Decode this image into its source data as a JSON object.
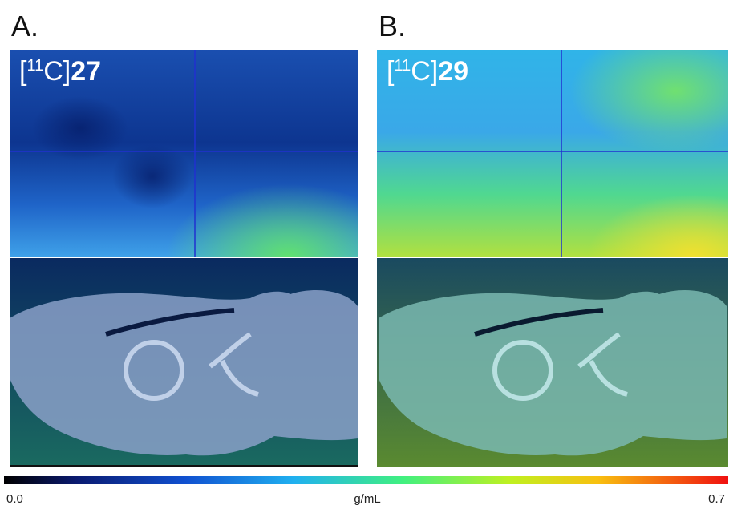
{
  "panels": [
    {
      "letter": "A.",
      "tracer": {
        "open": "[",
        "isotope": "11",
        "element": "C]",
        "compound": "27"
      }
    },
    {
      "letter": "B.",
      "tracer": {
        "open": "[",
        "isotope": "11",
        "element": "C]",
        "compound": "29"
      }
    }
  ],
  "colorbar": {
    "min": "0.0",
    "unit": "g/mL",
    "max": "0.7"
  }
}
